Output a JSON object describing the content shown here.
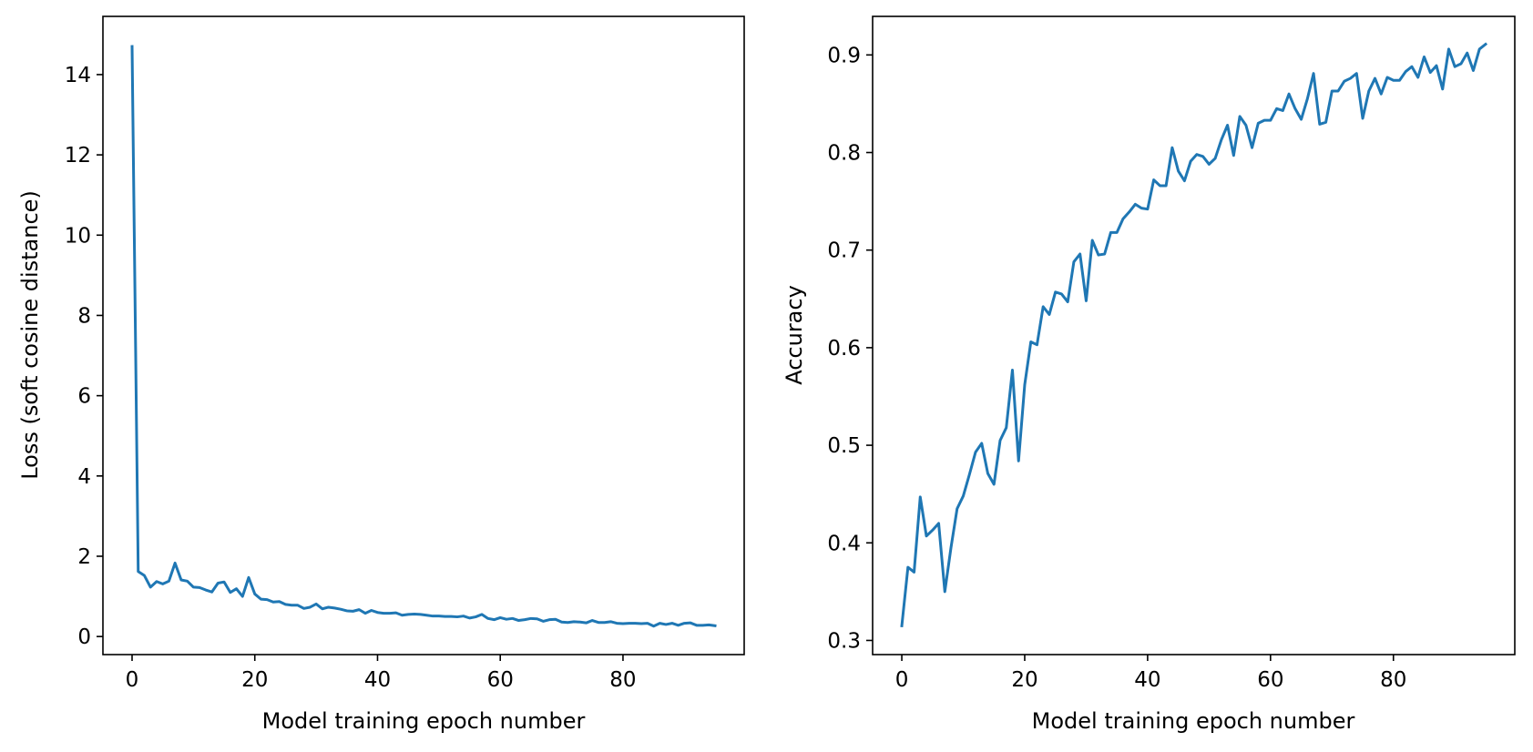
{
  "chart_data": [
    {
      "type": "line",
      "title": "",
      "xlabel": "Model training epoch number",
      "ylabel": "Loss (soft cosine distance)",
      "xlim": [
        -4.75,
        99.75
      ],
      "ylim": [
        -0.45,
        15.45
      ],
      "xticks": [
        0,
        20,
        40,
        60,
        80
      ],
      "yticks": [
        0,
        2,
        4,
        6,
        8,
        10,
        12,
        14
      ],
      "grid": false,
      "color": "#1f77b4",
      "series": [
        {
          "x": [
            0,
            1,
            2,
            3,
            4,
            5,
            6,
            7,
            8,
            9,
            10,
            11,
            12,
            13,
            14,
            15,
            16,
            17,
            18,
            19,
            20,
            21,
            22,
            23,
            24,
            25,
            26,
            27,
            28,
            29,
            30,
            31,
            32,
            33,
            34,
            35,
            36,
            37,
            38,
            39,
            40,
            41,
            42,
            43,
            44,
            45,
            46,
            47,
            48,
            49,
            50,
            51,
            52,
            53,
            54,
            55,
            56,
            57,
            58,
            59,
            60,
            61,
            62,
            63,
            64,
            65,
            66,
            67,
            68,
            69,
            70,
            71,
            72,
            73,
            74,
            75,
            76,
            77,
            78,
            79,
            80,
            81,
            82,
            83,
            84,
            85,
            86,
            87,
            88,
            89,
            90,
            91,
            92,
            93,
            94,
            95
          ],
          "y": [
            14.7,
            1.62,
            1.52,
            1.23,
            1.37,
            1.31,
            1.38,
            1.83,
            1.41,
            1.38,
            1.23,
            1.22,
            1.16,
            1.11,
            1.33,
            1.36,
            1.1,
            1.19,
            1.0,
            1.47,
            1.06,
            0.93,
            0.92,
            0.86,
            0.87,
            0.8,
            0.78,
            0.78,
            0.7,
            0.73,
            0.81,
            0.69,
            0.73,
            0.71,
            0.68,
            0.64,
            0.63,
            0.67,
            0.58,
            0.65,
            0.6,
            0.58,
            0.58,
            0.59,
            0.53,
            0.55,
            0.56,
            0.55,
            0.53,
            0.51,
            0.51,
            0.5,
            0.5,
            0.49,
            0.51,
            0.46,
            0.49,
            0.55,
            0.45,
            0.42,
            0.47,
            0.43,
            0.45,
            0.4,
            0.42,
            0.45,
            0.44,
            0.38,
            0.42,
            0.43,
            0.36,
            0.35,
            0.37,
            0.36,
            0.34,
            0.4,
            0.35,
            0.35,
            0.37,
            0.33,
            0.32,
            0.33,
            0.33,
            0.32,
            0.33,
            0.26,
            0.33,
            0.3,
            0.33,
            0.28,
            0.33,
            0.34,
            0.28,
            0.28,
            0.29,
            0.27
          ]
        }
      ]
    },
    {
      "type": "line",
      "title": "",
      "xlabel": "Model training epoch number",
      "ylabel": "Accuracy",
      "xlim": [
        -4.75,
        99.75
      ],
      "ylim": [
        0.2855,
        0.9395
      ],
      "xticks": [
        0,
        20,
        40,
        60,
        80
      ],
      "yticks": [
        0.3,
        0.4,
        0.5,
        0.6,
        0.7,
        0.8,
        0.9
      ],
      "grid": false,
      "color": "#1f77b4",
      "series": [
        {
          "x": [
            0,
            1,
            2,
            3,
            4,
            5,
            6,
            7,
            8,
            9,
            10,
            11,
            12,
            13,
            14,
            15,
            16,
            17,
            18,
            19,
            20,
            21,
            22,
            23,
            24,
            25,
            26,
            27,
            28,
            29,
            30,
            31,
            32,
            33,
            34,
            35,
            36,
            37,
            38,
            39,
            40,
            41,
            42,
            43,
            44,
            45,
            46,
            47,
            48,
            49,
            50,
            51,
            52,
            53,
            54,
            55,
            56,
            57,
            58,
            59,
            60,
            61,
            62,
            63,
            64,
            65,
            66,
            67,
            68,
            69,
            70,
            71,
            72,
            73,
            74,
            75,
            76,
            77,
            78,
            79,
            80,
            81,
            82,
            83,
            84,
            85,
            86,
            87,
            88,
            89,
            90,
            91,
            92,
            93,
            94,
            95
          ],
          "y": [
            0.315,
            0.375,
            0.37,
            0.447,
            0.407,
            0.413,
            0.42,
            0.35,
            0.395,
            0.435,
            0.448,
            0.47,
            0.493,
            0.502,
            0.471,
            0.46,
            0.505,
            0.518,
            0.577,
            0.484,
            0.562,
            0.606,
            0.603,
            0.642,
            0.634,
            0.657,
            0.655,
            0.647,
            0.688,
            0.696,
            0.648,
            0.71,
            0.695,
            0.696,
            0.718,
            0.718,
            0.732,
            0.739,
            0.747,
            0.743,
            0.742,
            0.772,
            0.766,
            0.766,
            0.805,
            0.781,
            0.771,
            0.791,
            0.798,
            0.796,
            0.788,
            0.794,
            0.813,
            0.828,
            0.797,
            0.837,
            0.828,
            0.805,
            0.83,
            0.833,
            0.833,
            0.845,
            0.843,
            0.86,
            0.845,
            0.834,
            0.855,
            0.881,
            0.829,
            0.831,
            0.863,
            0.863,
            0.873,
            0.876,
            0.881,
            0.835,
            0.863,
            0.876,
            0.86,
            0.877,
            0.874,
            0.874,
            0.883,
            0.888,
            0.877,
            0.898,
            0.882,
            0.889,
            0.865,
            0.906,
            0.888,
            0.891,
            0.902,
            0.884,
            0.906,
            0.911
          ]
        }
      ]
    }
  ]
}
